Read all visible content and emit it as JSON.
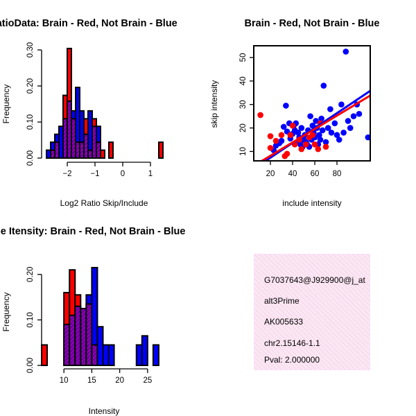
{
  "chart_data": [
    {
      "id": "ratio_hist",
      "type": "histogram",
      "title": "RatioData: Brain - Red, Not Brain - Blue",
      "xlabel": "Log2 Ratio Skip/Include",
      "ylabel": "Frequency",
      "xlim": [
        -2.75,
        1.5
      ],
      "ylim": [
        0,
        0.3
      ],
      "xticks": [
        -2,
        -1,
        0,
        1
      ],
      "yticks": [
        0.0,
        0.1,
        0.2,
        0.3
      ],
      "ytick_labels": [
        "0.00",
        "0.10",
        "0.20",
        "0.30"
      ],
      "bin_width": 0.15,
      "x_start": -2.75,
      "series": [
        {
          "name": "Brain",
          "color": "#ff0000",
          "values": [
            0,
            0.022,
            0.044,
            0,
            0.174,
            0.304,
            0.109,
            0.044,
            0.044,
            0.109,
            0.022,
            0.109,
            0.044,
            0.022,
            0,
            0.044,
            0,
            0,
            0,
            0,
            0,
            0,
            0,
            0,
            0,
            0,
            0,
            0.044
          ]
        },
        {
          "name": "Not Brain",
          "color": "#0000ff",
          "values": [
            0.022,
            0.044,
            0.066,
            0.088,
            0.109,
            0.158,
            0.131,
            0.196,
            0.131,
            0.066,
            0.131,
            0.088,
            0.088,
            0,
            0,
            0,
            0,
            0,
            0,
            0,
            0,
            0,
            0,
            0,
            0,
            0,
            0,
            0
          ]
        }
      ]
    },
    {
      "id": "scatter",
      "type": "scatter",
      "title": "Brain - Red, Not Brain - Blue",
      "xlabel": "include intensity",
      "ylabel": "skip intensity",
      "xlim": [
        5,
        110
      ],
      "ylim": [
        6,
        55
      ],
      "xticks": [
        20,
        40,
        60,
        80
      ],
      "yticks": [
        10,
        20,
        30,
        40,
        50
      ],
      "series": [
        {
          "name": "Brain",
          "color": "#ff0000",
          "points": [
            [
              11,
              25.5
            ],
            [
              20,
              16.5
            ],
            [
              20,
              11.5
            ],
            [
              25,
              14.5
            ],
            [
              30,
              17
            ],
            [
              33,
              8
            ],
            [
              35,
              9
            ],
            [
              38,
              17
            ],
            [
              40,
              21
            ],
            [
              42,
              13
            ],
            [
              46,
              15
            ],
            [
              48,
              11
            ],
            [
              52,
              13
            ],
            [
              55,
              16
            ],
            [
              58,
              17
            ],
            [
              60,
              13
            ],
            [
              63,
              11
            ],
            [
              65,
              22
            ],
            [
              70,
              12
            ]
          ],
          "fit": [
            [
              5,
              3.9
            ],
            [
              110,
              33.8
            ]
          ]
        },
        {
          "name": "Not Brain",
          "color": "#0000ff",
          "points": [
            [
              23,
              10.5
            ],
            [
              25,
              12.5
            ],
            [
              28,
              13.5
            ],
            [
              30,
              14.5
            ],
            [
              32,
              20.5
            ],
            [
              34,
              29.5
            ],
            [
              35,
              18.5
            ],
            [
              37,
              22
            ],
            [
              38,
              15.5
            ],
            [
              40,
              17.5
            ],
            [
              41,
              21
            ],
            [
              42,
              19
            ],
            [
              43,
              22
            ],
            [
              44,
              14
            ],
            [
              45,
              18
            ],
            [
              46,
              16
            ],
            [
              47,
              13
            ],
            [
              48,
              20
            ],
            [
              49,
              12
            ],
            [
              50,
              15
            ],
            [
              51,
              17
            ],
            [
              52,
              14
            ],
            [
              53,
              13
            ],
            [
              54,
              19
            ],
            [
              55,
              12
            ],
            [
              56,
              25
            ],
            [
              57,
              15
            ],
            [
              58,
              21
            ],
            [
              59,
              18
            ],
            [
              60,
              16
            ],
            [
              61,
              23
            ],
            [
              62,
              20
            ],
            [
              63,
              13
            ],
            [
              64,
              17
            ],
            [
              65,
              15
            ],
            [
              66,
              24
            ],
            [
              67,
              19
            ],
            [
              68,
              38
            ],
            [
              70,
              14
            ],
            [
              72,
              20
            ],
            [
              74,
              28
            ],
            [
              75,
              18
            ],
            [
              78,
              22
            ],
            [
              80,
              17
            ],
            [
              82,
              15
            ],
            [
              84,
              30
            ],
            [
              86,
              18
            ],
            [
              88,
              52.5
            ],
            [
              90,
              23
            ],
            [
              92,
              20
            ],
            [
              95,
              25
            ],
            [
              98,
              30
            ],
            [
              100,
              26
            ],
            [
              108,
              16
            ]
          ],
          "fit": [
            [
              5,
              2.6
            ],
            [
              110,
              35.8
            ]
          ]
        }
      ]
    },
    {
      "id": "intensity_hist",
      "type": "histogram",
      "title": "Gene Itensity: Brain - Red, Not Brain - Blue",
      "xlabel": "Intensity",
      "ylabel": "Frequency",
      "xlim": [
        6,
        28
      ],
      "ylim": [
        0,
        0.25
      ],
      "xticks": [
        10,
        15,
        20,
        25
      ],
      "yticks": [
        0.0,
        0.1,
        0.2
      ],
      "ytick_labels": [
        "0.00",
        "0.10",
        "0.20"
      ],
      "bin_width": 1,
      "x_start": 6,
      "series": [
        {
          "name": "Brain",
          "color": "#ff0000",
          "values": [
            0.045,
            0,
            0,
            0,
            0.16,
            0.21,
            0.155,
            0.125,
            0.135,
            0.045,
            0,
            0,
            0,
            0,
            0,
            0,
            0,
            0,
            0,
            0,
            0,
            0
          ]
        },
        {
          "name": "Not Brain",
          "color": "#0000ff",
          "values": [
            0,
            0,
            0,
            0,
            0.09,
            0.11,
            0.13,
            0.125,
            0.155,
            0.215,
            0.085,
            0.045,
            0.045,
            0,
            0,
            0,
            0,
            0.045,
            0.065,
            0,
            0.045,
            0
          ]
        }
      ]
    }
  ],
  "info_box": {
    "lines": [
      "G7037643@J929900@j_at",
      "alt3Prime",
      "AK005633",
      "chr2.15146-1.1"
    ],
    "pval": "Pval: 2.000000",
    "pval_color": "#8b0000",
    "background": "#fbe6f3"
  }
}
